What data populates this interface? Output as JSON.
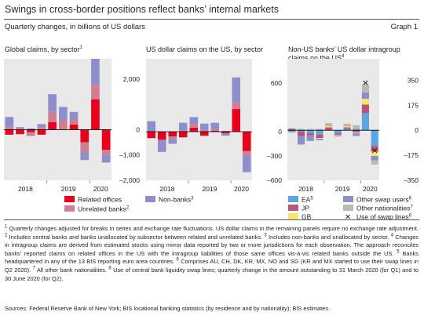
{
  "header": {
    "title": "Swings in cross-border positions reflect banks’ internal markets",
    "subtitle": "Quarterly changes, in billions of US dollars",
    "graph_label": "Graph 1"
  },
  "panel_titles": [
    {
      "text": "Global claims, by sector",
      "sup": "1"
    },
    {
      "text": "US dollar claims on the US, by sector",
      "sup": ""
    },
    {
      "text": "Non-US banks’ US dollar intragroup claims on the US",
      "sup": "4"
    }
  ],
  "legend": {
    "panel1": [
      {
        "label": "Related offices",
        "sup": "",
        "color": "#e8001c"
      },
      {
        "label": "Unrelated banks",
        "sup": "2",
        "color": "#cf7f92"
      }
    ],
    "panel2": [
      {
        "label": "Non-banks",
        "sup": "3",
        "color": "#8c8fcc"
      }
    ],
    "panel3": [
      {
        "label": "EA",
        "sup": "5",
        "color": "#5aa6e0"
      },
      {
        "label": "JP",
        "sup": "",
        "color": "#c0527a"
      },
      {
        "label": "GB",
        "sup": "",
        "color": "#f7e66a"
      },
      {
        "label": "Other swap users",
        "sup": "6",
        "color": "#8c8fcc"
      },
      {
        "label": "Other nationalities",
        "sup": "7",
        "color": "#b9b9b9"
      },
      {
        "label": "Use of swap lines",
        "sup": "8",
        "marker": "×"
      }
    ]
  },
  "chart_data": [
    {
      "type": "bar",
      "stacked": true,
      "title": "Global claims, by sector",
      "x": [
        "2018 Q1",
        "2018 Q2",
        "2018 Q3",
        "2018 Q4",
        "2019 Q1",
        "2019 Q2",
        "2019 Q3",
        "2019 Q4",
        "2020 Q1",
        "2020 Q2"
      ],
      "x_tick_labels": [
        "2018",
        "2019",
        "2020"
      ],
      "y_ticks": [
        2000,
        1000,
        0,
        -1000,
        -2000
      ],
      "y_tick_labels": [
        "2,000",
        "",
        "0",
        "–1,000",
        "–2,000"
      ],
      "ylim": [
        -2000,
        2800
      ],
      "grid": false,
      "series": [
        {
          "name": "Related offices",
          "values": [
            -200,
            -180,
            -100,
            -200,
            300,
            0,
            200,
            -500,
            1200,
            -800
          ]
        },
        {
          "name": "Unrelated banks",
          "values": [
            100,
            50,
            -150,
            100,
            400,
            400,
            200,
            -400,
            600,
            -200
          ]
        },
        {
          "name": "Non-banks",
          "values": [
            400,
            50,
            50,
            120,
            700,
            500,
            300,
            -300,
            1000,
            -300
          ]
        }
      ]
    },
    {
      "type": "bar",
      "stacked": true,
      "title": "US dollar claims on the US, by sector",
      "x": [
        "2018 Q1",
        "2018 Q2",
        "2018 Q3",
        "2018 Q4",
        "2019 Q1",
        "2019 Q2",
        "2019 Q3",
        "2019 Q4",
        "2020 Q1",
        "2020 Q2"
      ],
      "x_tick_labels": [
        "2018",
        "2019",
        "2020"
      ],
      "y_ticks": [
        600,
        300,
        0,
        -300,
        -600
      ],
      "y_tick_labels": [
        "600",
        "",
        "0",
        "–300",
        "–600"
      ],
      "ylim": [
        -600,
        900
      ],
      "grid": false,
      "series": [
        {
          "name": "Related offices",
          "values": [
            -80,
            -100,
            -60,
            -70,
            50,
            -50,
            10,
            -20,
            280,
            -240
          ]
        },
        {
          "name": "Unrelated banks",
          "values": [
            0,
            0,
            -30,
            10,
            40,
            20,
            20,
            10,
            80,
            -60
          ]
        },
        {
          "name": "Non-banks",
          "values": [
            130,
            -150,
            -60,
            100,
            90,
            80,
            80,
            -30,
            310,
            -200
          ]
        }
      ]
    },
    {
      "type": "bar",
      "stacked": true,
      "title": "Non-US banks’ US dollar intragroup claims on the US",
      "x": [
        "2018 Q1",
        "2018 Q2",
        "2018 Q3",
        "2018 Q4",
        "2019 Q1",
        "2019 Q2",
        "2019 Q3",
        "2019 Q4",
        "2020 Q1",
        "2020 Q2"
      ],
      "x_tick_labels": [
        "2018",
        "2019",
        "2020"
      ],
      "y_ticks": [
        350,
        175,
        0,
        -175,
        -350
      ],
      "y_tick_labels": [
        "350",
        "175",
        "0",
        "–175",
        "–350"
      ],
      "ylim": [
        -350,
        500
      ],
      "grid": false,
      "series": [
        {
          "name": "EA",
          "values": [
            -10,
            -10,
            -20,
            -30,
            0,
            -20,
            10,
            10,
            120,
            -110
          ]
        },
        {
          "name": "JP",
          "values": [
            10,
            -30,
            -15,
            -25,
            20,
            -10,
            10,
            -15,
            60,
            -40
          ]
        },
        {
          "name": "GB",
          "values": [
            0,
            0,
            5,
            -5,
            10,
            0,
            10,
            -5,
            40,
            -30
          ]
        },
        {
          "name": "Other swap users",
          "values": [
            -5,
            -60,
            -40,
            -10,
            5,
            -5,
            5,
            -20,
            45,
            -30
          ]
        },
        {
          "name": "Other nationalities",
          "values": [
            5,
            10,
            5,
            10,
            15,
            -10,
            10,
            25,
            55,
            -30
          ]
        }
      ],
      "markers": {
        "name": "Use of swap lines",
        "values": [
          null,
          null,
          null,
          null,
          null,
          null,
          null,
          null,
          330,
          -145
        ]
      }
    }
  ],
  "notes": [
    {
      "sup": "1",
      "text": "Quarterly changes adjusted for breaks in series and exchange rate fluctuations. US dollar claims in the remaining panels require no exchange rate adjustment."
    },
    {
      "sup": "2",
      "text": "Includes central banks and banks unallocated by subsector between related and unrelated banks."
    },
    {
      "sup": "3",
      "text": "Includes non-banks and unallocated by sector."
    },
    {
      "sup": "4",
      "text": "Changes in intragroup claims are derived from estimated stocks using mirror data reported by two or more jurisdictions for each observation. The approach reconciles banks’ reported claims on related offices in the US with the intragroup liabilities of those same offices vis-à-vis related banks outside the US."
    },
    {
      "sup": "5",
      "text": "Banks headquartered in any of the 13 BIS reporting euro area countries."
    },
    {
      "sup": "6",
      "text": "Comprises AU, CH, DK, KR, MX, NO and SG (KR and MX started to use their swap lines in Q2 2020)."
    },
    {
      "sup": "7",
      "text": "All other bank nationalities."
    },
    {
      "sup": "8",
      "text": "Use of central bank liquidity swap lines; quarterly change in the amount outstanding to 31 March 2020 (for Q1) and to 30 June 2020 (for Q2)."
    }
  ],
  "sources": "Sources: Federal Reserve Bank of New York; BIS locational banking statistics (by residence and by nationality); BIS estimates.",
  "colors": {
    "panel_bg": "#e9e9e9",
    "related": "#e8001c",
    "unrelated": "#cf7f92",
    "nonbanks": "#8c8fcc",
    "ea": "#5aa6e0",
    "jp": "#c0527a",
    "gb": "#f7e66a",
    "other_swap": "#8c8fcc",
    "other_nat": "#b9b9b9"
  }
}
